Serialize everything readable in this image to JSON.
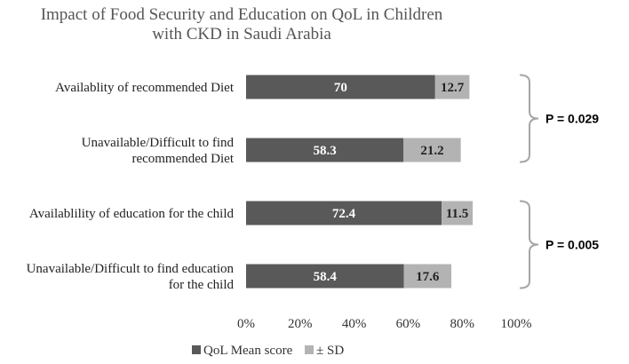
{
  "chart_data": {
    "type": "bar",
    "orientation": "horizontal",
    "stacked": true,
    "title_lines": [
      "Impact of Food Security and Education on QoL in Children",
      "with CKD in Saudi Arabia"
    ],
    "categories": [
      {
        "lines": [
          "Availablity of recommended Diet"
        ]
      },
      {
        "lines": [
          "Unavailable/Difficult to find",
          "recommended Diet"
        ]
      },
      {
        "lines": [
          "Availablility of education for the child"
        ]
      },
      {
        "lines": [
          "Unavailable/Difficult to find education",
          "for the child"
        ]
      }
    ],
    "series": [
      {
        "name": "QoL Mean score",
        "color": "#595959",
        "values": [
          70,
          58.3,
          72.4,
          58.4
        ]
      },
      {
        "name": "± SD",
        "color": "#b3b3b3",
        "values": [
          12.7,
          21.2,
          11.5,
          17.6
        ]
      }
    ],
    "x_ticks": [
      "0%",
      "20%",
      "40%",
      "60%",
      "80%",
      "100%"
    ],
    "annotations": [
      {
        "text": "P = 0.029",
        "rows": [
          0,
          1
        ]
      },
      {
        "text": "P = 0.005",
        "rows": [
          2,
          3
        ]
      }
    ],
    "legend_position": "bottom"
  }
}
